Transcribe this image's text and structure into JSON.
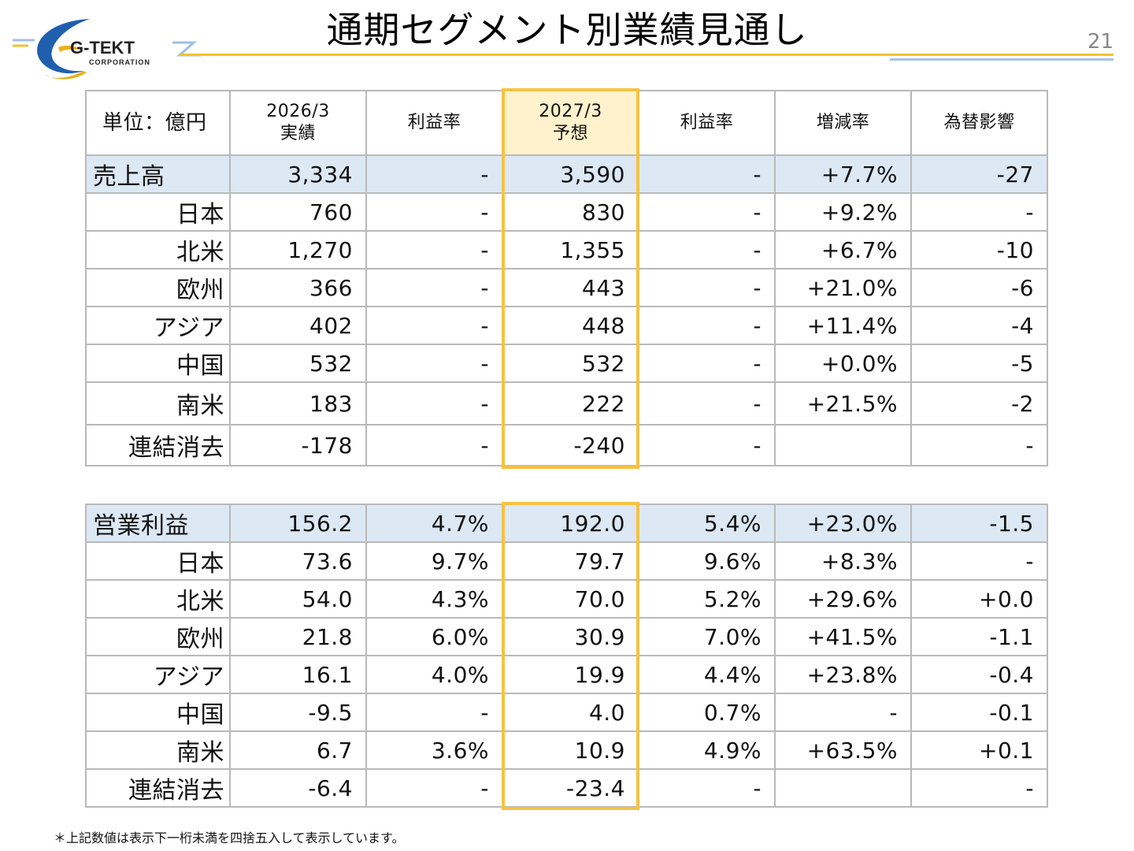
{
  "header": {
    "title": "通期セグメント別業績見通し",
    "page_number": "21",
    "logo_name": "G-TEKT",
    "logo_sub": "CORPORATION"
  },
  "sales_table": {
    "headers": [
      "単位：億円",
      "2026/3\n実績",
      "利益率",
      "2027/3\n予想",
      "利益率",
      "増減率",
      "為替影響"
    ],
    "rows": [
      [
        "売上高",
        "3,334",
        "-",
        "3,590",
        "-",
        "+7.7%",
        "-27"
      ],
      [
        "日本",
        "760",
        "-",
        "830",
        "-",
        "+9.2%",
        "-"
      ],
      [
        "北米",
        "1,270",
        "-",
        "1,355",
        "-",
        "+6.7%",
        "-10"
      ],
      [
        "欧州",
        "366",
        "-",
        "443",
        "-",
        "+21.0%",
        "-6"
      ],
      [
        "アジア",
        "402",
        "-",
        "448",
        "-",
        "+11.4%",
        "-4"
      ],
      [
        "中国",
        "532",
        "-",
        "532",
        "-",
        "+0.0%",
        "-5"
      ],
      [
        "南米",
        "183",
        "-",
        "222",
        "-",
        "+21.5%",
        "-2"
      ],
      [
        "連結消去",
        "-178",
        "-",
        "-240",
        "-",
        "",
        "-"
      ]
    ]
  },
  "op_table": {
    "rows": [
      [
        "営業利益",
        "156.2",
        "4.7%",
        "192.0",
        "5.4%",
        "+23.0%",
        "-1.5"
      ],
      [
        "日本",
        "73.6",
        "9.7%",
        "79.7",
        "9.6%",
        "+8.3%",
        "-"
      ],
      [
        "北米",
        "54.0",
        "4.3%",
        "70.0",
        "5.2%",
        "+29.6%",
        "+0.0"
      ],
      [
        "欧州",
        "21.8",
        "6.0%",
        "30.9",
        "7.0%",
        "+41.5%",
        "-1.1"
      ],
      [
        "アジア",
        "16.1",
        "4.0%",
        "19.9",
        "4.4%",
        "+23.8%",
        "-0.4"
      ],
      [
        "中国",
        "-9.5",
        "-",
        "4.0",
        "0.7%",
        "-",
        "-0.1"
      ],
      [
        "南米",
        "6.7",
        "3.6%",
        "10.9",
        "4.9%",
        "+63.5%",
        "+0.1"
      ],
      [
        "連結消去",
        "-6.4",
        "-",
        "-23.4",
        "-",
        "",
        "-"
      ]
    ]
  },
  "footnote": "＊上記数値は表示下一桁未満を四捨五入して表示しています。",
  "colors": {
    "total_row_bg": "#dde8f5",
    "highlight_header_bg": "#fff2cc",
    "highlight_frame": "#f6c242",
    "title_rule": "#f1c232",
    "accent_blue": "#1f5fae"
  }
}
